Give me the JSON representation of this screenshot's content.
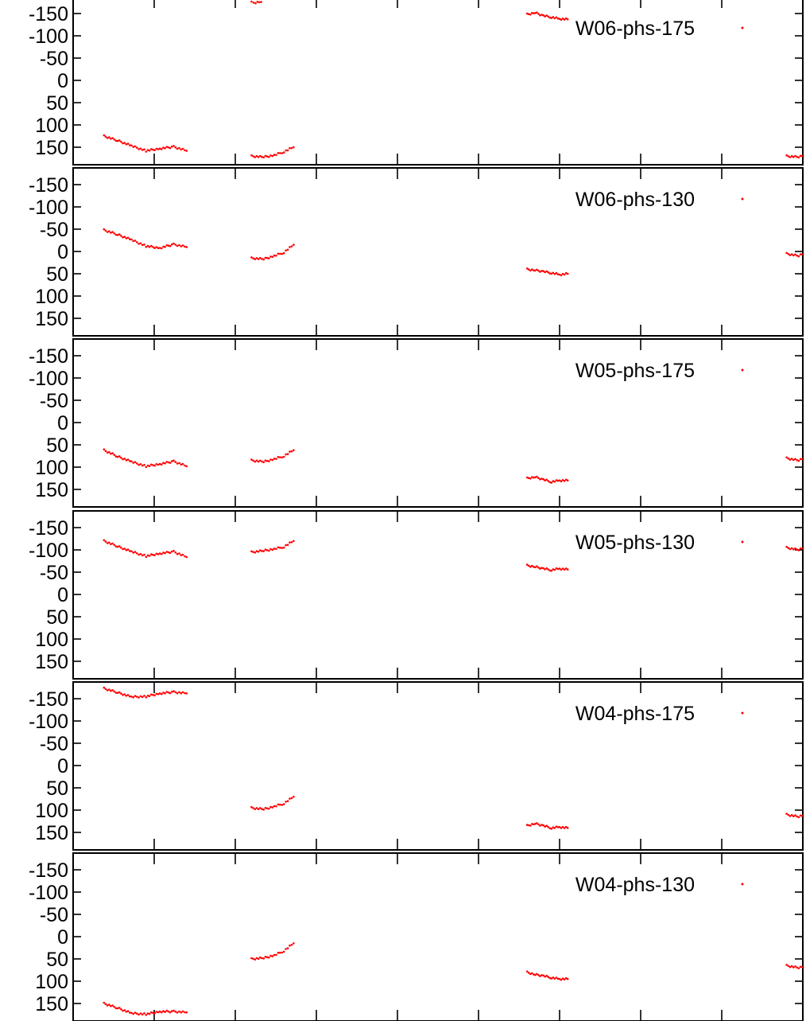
{
  "chart_data": {
    "type": "scatter",
    "layout": "stacked-panels",
    "series_color": "#ff0000",
    "grid": false,
    "legend_placement": "top-right",
    "xlim": [
      0,
      900
    ],
    "x_major_ticks": [
      100,
      200,
      300,
      400,
      500,
      600,
      700,
      800
    ],
    "x_tick_labels_shown": false,
    "ylim": [
      175,
      -175
    ],
    "y_reversed": true,
    "y_ticks": [
      -150,
      -100,
      -50,
      0,
      50,
      100,
      150
    ],
    "y_tick_labels": [
      "-150",
      "-100",
      "-50",
      "0",
      "50",
      "100",
      "150"
    ],
    "panels": [
      {
        "name": "W06-phs-175",
        "segments": [
          {
            "x": [
              38,
              55,
              72,
              90,
              107,
              124,
              140
            ],
            "y": [
              125,
              135,
              147,
              158,
              153,
              149,
              158
            ]
          },
          {
            "x": [
              220,
              225,
              232
            ],
            "y": [
              -175,
              -174,
              -176
            ]
          },
          {
            "x": [
              220,
              235,
              248,
              260,
              272
            ],
            "y": [
              170,
              172,
              168,
              160,
              150
            ]
          },
          {
            "x": [
              560,
              570,
              580,
              590,
              600,
              610
            ],
            "y": [
              -148,
              -152,
              -145,
              -142,
              -138,
              -137
            ]
          },
          {
            "x": [
              880,
              895,
              910,
              925,
              940
            ],
            "y": [
              170,
              172,
              165,
              155,
              142
            ]
          }
        ]
      },
      {
        "name": "W06-phs-130",
        "segments": [
          {
            "x": [
              38,
              55,
              72,
              90,
              107,
              124,
              140
            ],
            "y": [
              -48,
              -38,
              -26,
              -12,
              -8,
              -16,
              -10
            ]
          },
          {
            "x": [
              220,
              235,
              248,
              260,
              272
            ],
            "y": [
              15,
              17,
              10,
              2,
              -15
            ]
          },
          {
            "x": [
              560,
              570,
              580,
              590,
              600,
              610
            ],
            "y": [
              40,
              42,
              45,
              48,
              52,
              50
            ]
          },
          {
            "x": [
              880,
              895,
              910,
              925,
              940
            ],
            "y": [
              5,
              10,
              -2,
              -15,
              -28
            ]
          }
        ]
      },
      {
        "name": "W05-phs-175",
        "segments": [
          {
            "x": [
              38,
              55,
              72,
              90,
              107,
              124,
              140
            ],
            "y": [
              62,
              76,
              88,
              98,
              93,
              87,
              98
            ]
          },
          {
            "x": [
              220,
              235,
              248,
              260,
              272
            ],
            "y": [
              85,
              88,
              82,
              75,
              62
            ]
          },
          {
            "x": [
              560,
              570,
              580,
              590,
              600,
              610
            ],
            "y": [
              125,
              122,
              128,
              133,
              130,
              130
            ]
          },
          {
            "x": [
              880,
              895,
              910,
              925,
              940
            ],
            "y": [
              80,
              85,
              75,
              65,
              50
            ]
          }
        ]
      },
      {
        "name": "W05-phs-130",
        "segments": [
          {
            "x": [
              38,
              55,
              72,
              90,
              107,
              124,
              140
            ],
            "y": [
              -120,
              -108,
              -96,
              -86,
              -92,
              -96,
              -84
            ]
          },
          {
            "x": [
              220,
              235,
              248,
              260,
              272
            ],
            "y": [
              -95,
              -98,
              -102,
              -107,
              -120
            ]
          },
          {
            "x": [
              560,
              570,
              580,
              590,
              600,
              610
            ],
            "y": [
              -65,
              -62,
              -58,
              -55,
              -58,
              -56
            ]
          },
          {
            "x": [
              880,
              895,
              910,
              925,
              940
            ],
            "y": [
              -105,
              -100,
              -110,
              -122,
              -135
            ]
          }
        ]
      },
      {
        "name": "W04-phs-175",
        "segments": [
          {
            "x": [
              38,
              55,
              72,
              90,
              107,
              124,
              140
            ],
            "y": [
              -173,
              -164,
              -154,
              -155,
              -162,
              -165,
              -162
            ]
          },
          {
            "x": [
              220,
              235,
              248,
              260,
              272
            ],
            "y": [
              95,
              98,
              92,
              85,
              70
            ]
          },
          {
            "x": [
              560,
              570,
              580,
              590,
              600,
              610
            ],
            "y": [
              135,
              130,
              135,
              140,
              138,
              140
            ]
          },
          {
            "x": [
              880,
              895,
              910,
              925,
              940
            ],
            "y": [
              110,
              115,
              108,
              100,
              90
            ]
          }
        ]
      },
      {
        "name": "W04-phs-130",
        "segments": [
          {
            "x": [
              38,
              55,
              72,
              90,
              107,
              124,
              140
            ],
            "y": [
              150,
              160,
              172,
              174,
              168,
              168,
              170
            ]
          },
          {
            "x": [
              220,
              235,
              248,
              260,
              272
            ],
            "y": [
              50,
              48,
              42,
              32,
              15
            ]
          },
          {
            "x": [
              560,
              570,
              580,
              590,
              600,
              610
            ],
            "y": [
              80,
              85,
              88,
              92,
              95,
              95
            ]
          },
          {
            "x": [
              880,
              895,
              910,
              925,
              940
            ],
            "y": [
              65,
              70,
              65,
              58,
              48
            ]
          }
        ]
      }
    ]
  }
}
